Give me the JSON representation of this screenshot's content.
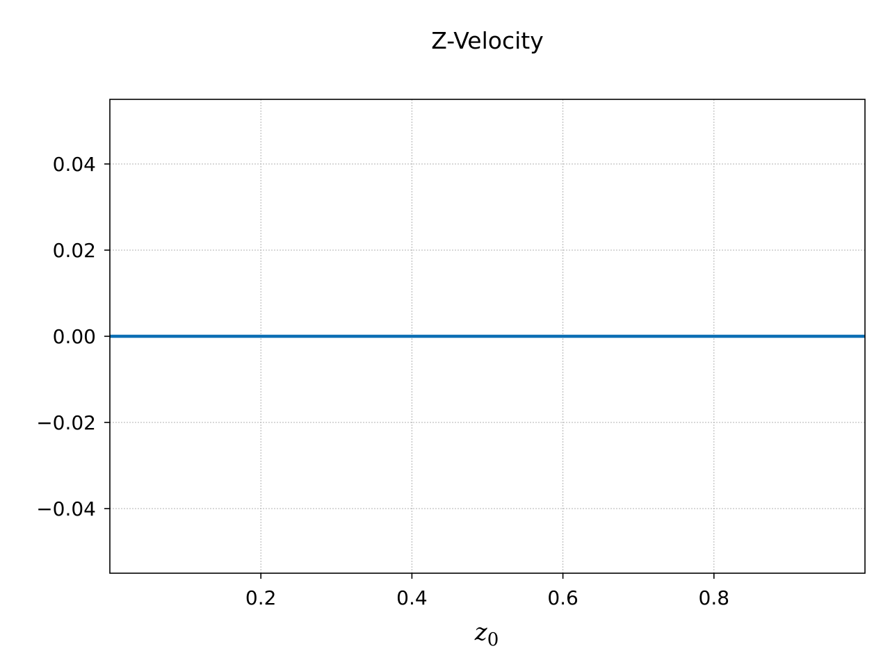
{
  "chart_data": {
    "type": "line",
    "title": "Z-Velocity",
    "xlabel": "z",
    "xlabel_subscript": "0",
    "ylabel": "",
    "xlim": [
      0.0,
      1.0
    ],
    "ylim": [
      -0.055,
      0.055
    ],
    "x_ticks": [
      0.2,
      0.4,
      0.6,
      0.8
    ],
    "x_tick_labels": [
      "0.2",
      "0.4",
      "0.6",
      "0.8"
    ],
    "y_ticks": [
      0.04,
      0.02,
      0.0,
      -0.02,
      -0.04
    ],
    "y_tick_labels": [
      "0.04",
      "0.02",
      "0.00",
      "−0.02",
      "−0.04"
    ],
    "grid": true,
    "legend": "none",
    "series": [
      {
        "x": [
          0.0,
          0.2,
          0.4,
          0.6,
          0.8,
          1.0
        ],
        "values": [
          0,
          0,
          0,
          0,
          0,
          0
        ],
        "color": "#0c6fb4"
      }
    ]
  }
}
